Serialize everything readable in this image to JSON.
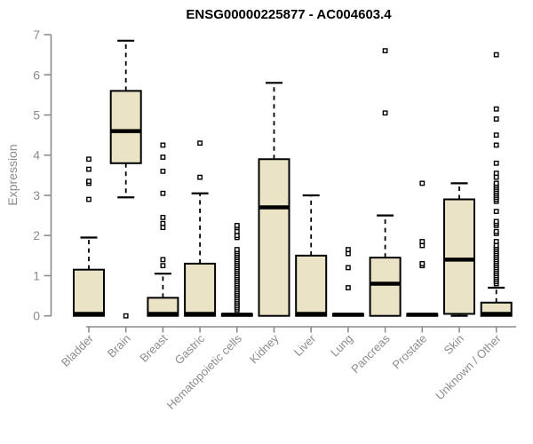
{
  "chart_data": {
    "type": "boxplot",
    "title": "ENSG00000225877 - AC004603.4",
    "ylabel": "Expression",
    "xlabel": "",
    "ylim": [
      0,
      7
    ],
    "yticks": [
      0,
      1,
      2,
      3,
      4,
      5,
      6,
      7
    ],
    "grid": false,
    "legend": "none",
    "categories": [
      "Bladder",
      "Brain",
      "Breast",
      "Gastric",
      "Hematopoietic cells",
      "Kidney",
      "Liver",
      "Lung",
      "Pancreas",
      "Prostate",
      "Skin",
      "Unknown / Other"
    ],
    "boxes": [
      {
        "category": "Bladder",
        "low": 0,
        "q1": 0,
        "median": 0.05,
        "q3": 1.15,
        "high": 1.95,
        "outliers": [
          2.9,
          3.3,
          3.35,
          3.65,
          3.9
        ]
      },
      {
        "category": "Brain",
        "low": 2.95,
        "q1": 3.8,
        "median": 4.6,
        "q3": 5.6,
        "high": 6.85,
        "outliers": [
          0
        ]
      },
      {
        "category": "Breast",
        "low": 0,
        "q1": 0,
        "median": 0.05,
        "q3": 0.45,
        "high": 1.05,
        "outliers": [
          1.25,
          1.4,
          2.2,
          2.3,
          2.45,
          3.05,
          3.6,
          3.95,
          4.25
        ]
      },
      {
        "category": "Gastric",
        "low": 0,
        "q1": 0,
        "median": 0.05,
        "q3": 1.3,
        "high": 3.05,
        "outliers": [
          3.45,
          4.3
        ]
      },
      {
        "category": "Hematopoietic cells",
        "low": 0,
        "q1": 0,
        "median": 0.03,
        "q3": 0.05,
        "high": 0.05,
        "outliers": [
          0.15,
          0.2,
          0.25,
          0.3,
          0.35,
          0.4,
          0.45,
          0.5,
          0.55,
          0.6,
          0.65,
          0.7,
          0.75,
          0.8,
          0.85,
          0.9,
          0.95,
          1.0,
          1.05,
          1.1,
          1.15,
          1.2,
          1.25,
          1.3,
          1.35,
          1.4,
          1.45,
          1.5,
          1.55,
          1.6,
          1.65,
          1.95,
          2.0,
          2.1,
          2.2,
          2.25
        ]
      },
      {
        "category": "Kidney",
        "low": 0,
        "q1": 0,
        "median": 2.7,
        "q3": 3.9,
        "high": 5.8,
        "outliers": []
      },
      {
        "category": "Liver",
        "low": 0,
        "q1": 0,
        "median": 0.05,
        "q3": 1.5,
        "high": 3.0,
        "outliers": []
      },
      {
        "category": "Lung",
        "low": 0,
        "q1": 0,
        "median": 0.03,
        "q3": 0.05,
        "high": 0.05,
        "outliers": [
          0.7,
          1.2,
          1.55,
          1.65
        ]
      },
      {
        "category": "Pancreas",
        "low": 0,
        "q1": 0,
        "median": 0.8,
        "q3": 1.45,
        "high": 2.5,
        "outliers": [
          5.05,
          6.6
        ]
      },
      {
        "category": "Prostate",
        "low": 0,
        "q1": 0,
        "median": 0.03,
        "q3": 0.05,
        "high": 0.05,
        "outliers": [
          1.25,
          1.3,
          1.75,
          1.85,
          3.3
        ]
      },
      {
        "category": "Skin",
        "low": 0,
        "q1": 0.05,
        "median": 1.4,
        "q3": 2.9,
        "high": 3.3,
        "outliers": []
      },
      {
        "category": "Unknown / Other",
        "low": 0,
        "q1": 0,
        "median": 0.05,
        "q3": 0.33,
        "high": 0.7,
        "outliers": [
          0.8,
          0.85,
          0.9,
          0.95,
          1.0,
          1.05,
          1.1,
          1.15,
          1.2,
          1.25,
          1.3,
          1.35,
          1.4,
          1.45,
          1.5,
          1.55,
          1.6,
          1.65,
          1.7,
          1.75,
          1.85,
          2.05,
          2.1,
          2.25,
          2.3,
          2.35,
          2.6,
          2.85,
          2.9,
          2.95,
          3.0,
          3.05,
          3.1,
          3.15,
          3.2,
          3.25,
          3.3,
          3.45,
          3.55,
          3.8,
          4.25,
          4.5,
          4.9,
          5.15,
          6.5
        ]
      }
    ],
    "colors": {
      "box_fill": "#EBE3C6",
      "box_stroke": "#000000",
      "median": "#000000",
      "whisker": "#000000",
      "outlier_stroke": "#000000",
      "outlier_fill": "#FFFFFF",
      "axis": "#8C8C8C",
      "tick_label": "#8C8C8C",
      "title": "#000000"
    }
  }
}
